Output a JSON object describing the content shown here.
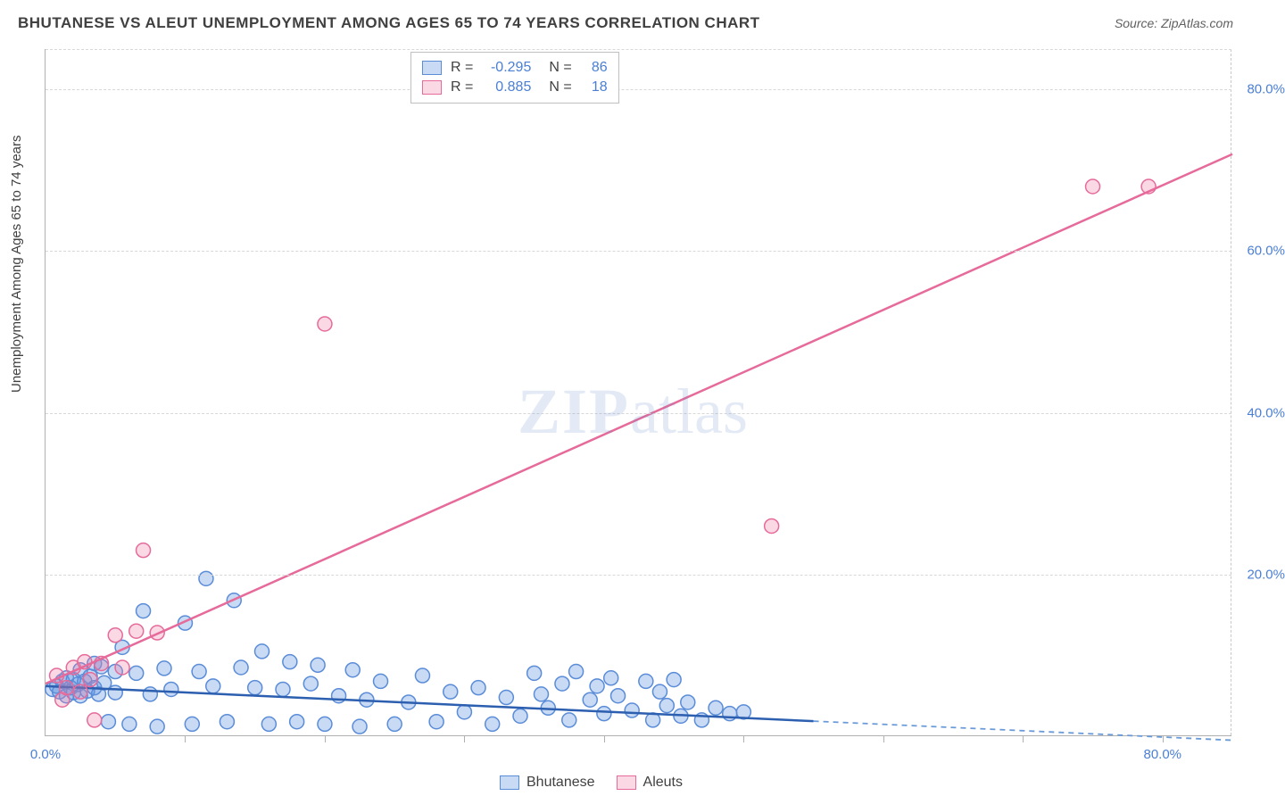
{
  "title": "BHUTANESE VS ALEUT UNEMPLOYMENT AMONG AGES 65 TO 74 YEARS CORRELATION CHART",
  "source": "Source: ZipAtlas.com",
  "ylabel": "Unemployment Among Ages 65 to 74 years",
  "watermark_zip": "ZIP",
  "watermark_atlas": "atlas",
  "chart": {
    "type": "scatter",
    "background_color": "#ffffff",
    "grid_color": "#d8d8d8",
    "axis_color": "#b0b0b0",
    "tick_label_color": "#4a7fd4",
    "tick_fontsize": 15,
    "label_fontsize": 15,
    "title_fontsize": 17,
    "xlim": [
      0,
      85
    ],
    "ylim": [
      0,
      85
    ],
    "y_ticks": [
      20,
      40,
      60,
      80
    ],
    "y_tick_labels": [
      "20.0%",
      "40.0%",
      "60.0%",
      "80.0%"
    ],
    "x_minor_ticks": [
      10,
      20,
      30,
      40,
      50,
      60,
      70,
      80
    ],
    "x_origin_label": "0.0%",
    "x_max_label": "80.0%",
    "marker_radius": 8,
    "marker_stroke_width": 1.5,
    "line_width": 2.5,
    "series": [
      {
        "name": "Bhutanese",
        "fill_color": "rgba(96,150,224,0.35)",
        "stroke_color": "#5a8cd8",
        "line_solid_end_x": 55,
        "line_dash": "6,5",
        "trend": {
          "x1": 0,
          "y1": 6.2,
          "x2": 85,
          "y2": -0.5
        },
        "points": [
          [
            0.5,
            5.8
          ],
          [
            0.8,
            6.2
          ],
          [
            1.0,
            5.5
          ],
          [
            1.2,
            6.8
          ],
          [
            1.5,
            5.0
          ],
          [
            1.5,
            7.2
          ],
          [
            1.8,
            6.0
          ],
          [
            2.0,
            5.4
          ],
          [
            2.0,
            7.0
          ],
          [
            2.3,
            6.4
          ],
          [
            2.5,
            8.2
          ],
          [
            2.5,
            5.0
          ],
          [
            2.8,
            6.8
          ],
          [
            3.0,
            5.6
          ],
          [
            3.2,
            7.4
          ],
          [
            3.5,
            9.0
          ],
          [
            3.5,
            6.0
          ],
          [
            3.8,
            5.2
          ],
          [
            4.0,
            8.6
          ],
          [
            4.2,
            6.6
          ],
          [
            4.5,
            1.8
          ],
          [
            5.0,
            8.0
          ],
          [
            5.0,
            5.4
          ],
          [
            5.5,
            11.0
          ],
          [
            6.0,
            1.5
          ],
          [
            6.5,
            7.8
          ],
          [
            7.0,
            15.5
          ],
          [
            7.5,
            5.2
          ],
          [
            8.0,
            1.2
          ],
          [
            8.5,
            8.4
          ],
          [
            9.0,
            5.8
          ],
          [
            10.0,
            14.0
          ],
          [
            10.5,
            1.5
          ],
          [
            11.0,
            8.0
          ],
          [
            11.5,
            19.5
          ],
          [
            12.0,
            6.2
          ],
          [
            13.0,
            1.8
          ],
          [
            13.5,
            16.8
          ],
          [
            14.0,
            8.5
          ],
          [
            15.0,
            6.0
          ],
          [
            15.5,
            10.5
          ],
          [
            16.0,
            1.5
          ],
          [
            17.0,
            5.8
          ],
          [
            17.5,
            9.2
          ],
          [
            18.0,
            1.8
          ],
          [
            19.0,
            6.5
          ],
          [
            19.5,
            8.8
          ],
          [
            20.0,
            1.5
          ],
          [
            21.0,
            5.0
          ],
          [
            22.0,
            8.2
          ],
          [
            22.5,
            1.2
          ],
          [
            23.0,
            4.5
          ],
          [
            24.0,
            6.8
          ],
          [
            25.0,
            1.5
          ],
          [
            26.0,
            4.2
          ],
          [
            27.0,
            7.5
          ],
          [
            28.0,
            1.8
          ],
          [
            29.0,
            5.5
          ],
          [
            30.0,
            3.0
          ],
          [
            31.0,
            6.0
          ],
          [
            32.0,
            1.5
          ],
          [
            33.0,
            4.8
          ],
          [
            34.0,
            2.5
          ],
          [
            35.0,
            7.8
          ],
          [
            35.5,
            5.2
          ],
          [
            36.0,
            3.5
          ],
          [
            37.0,
            6.5
          ],
          [
            37.5,
            2.0
          ],
          [
            38.0,
            8.0
          ],
          [
            39.0,
            4.5
          ],
          [
            39.5,
            6.2
          ],
          [
            40.0,
            2.8
          ],
          [
            40.5,
            7.2
          ],
          [
            41.0,
            5.0
          ],
          [
            42.0,
            3.2
          ],
          [
            43.0,
            6.8
          ],
          [
            43.5,
            2.0
          ],
          [
            44.0,
            5.5
          ],
          [
            44.5,
            3.8
          ],
          [
            45.0,
            7.0
          ],
          [
            45.5,
            2.5
          ],
          [
            46.0,
            4.2
          ],
          [
            47.0,
            2.0
          ],
          [
            48.0,
            3.5
          ],
          [
            49.0,
            2.8
          ],
          [
            50.0,
            3.0
          ]
        ]
      },
      {
        "name": "Aleuts",
        "fill_color": "rgba(240,130,170,0.30)",
        "stroke_color": "#e66a9a",
        "line_dash": null,
        "trend": {
          "x1": 0,
          "y1": 6.5,
          "x2": 85,
          "y2": 72.0
        },
        "points": [
          [
            0.8,
            7.5
          ],
          [
            1.2,
            4.5
          ],
          [
            1.5,
            6.0
          ],
          [
            2.0,
            8.5
          ],
          [
            2.5,
            5.5
          ],
          [
            2.8,
            9.2
          ],
          [
            3.2,
            7.0
          ],
          [
            3.5,
            2.0
          ],
          [
            4.0,
            9.0
          ],
          [
            5.0,
            12.5
          ],
          [
            5.5,
            8.5
          ],
          [
            6.5,
            13.0
          ],
          [
            7.0,
            23.0
          ],
          [
            8.0,
            12.8
          ],
          [
            20.0,
            51.0
          ],
          [
            52.0,
            26.0
          ],
          [
            75.0,
            68.0
          ],
          [
            79.0,
            68.0
          ]
        ]
      }
    ]
  },
  "legend_top": {
    "rows": [
      {
        "swatch_fill": "rgba(96,150,224,0.35)",
        "swatch_stroke": "#5a8cd8",
        "r_label": "R =",
        "r_value": "-0.295",
        "n_label": "N =",
        "n_value": "86"
      },
      {
        "swatch_fill": "rgba(240,130,170,0.30)",
        "swatch_stroke": "#e66a9a",
        "r_label": "R =",
        "r_value": "0.885",
        "n_label": "N =",
        "n_value": "18"
      }
    ]
  },
  "legend_bottom": {
    "items": [
      {
        "swatch_fill": "rgba(96,150,224,0.35)",
        "swatch_stroke": "#5a8cd8",
        "label": "Bhutanese"
      },
      {
        "swatch_fill": "rgba(240,130,170,0.30)",
        "swatch_stroke": "#e66a9a",
        "label": "Aleuts"
      }
    ]
  }
}
